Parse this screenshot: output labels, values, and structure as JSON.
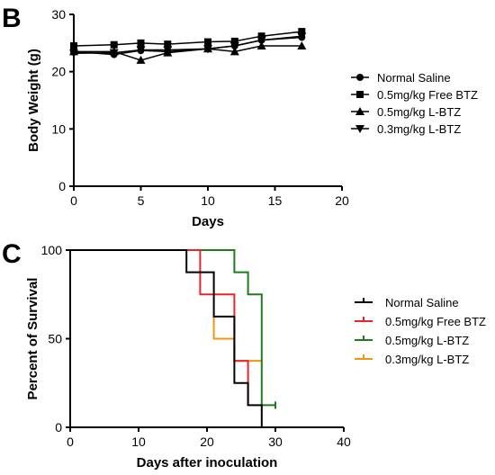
{
  "panels": {
    "b": {
      "letter": "B"
    },
    "c": {
      "letter": "C"
    }
  },
  "chart_data": [
    {
      "type": "line",
      "xlabel": "Days",
      "ylabel": "Body Weight (g)",
      "xlim": [
        0,
        20
      ],
      "ylim": [
        0,
        30
      ],
      "x_ticks": [
        "0",
        "5",
        "10",
        "15",
        "20"
      ],
      "y_ticks": [
        "0",
        "10",
        "20",
        "30"
      ],
      "grid": false,
      "legend_position": "right",
      "x": [
        0,
        3,
        5,
        7,
        10,
        12,
        14,
        17
      ],
      "series": [
        {
          "name": "Normal Saline",
          "marker": "circle",
          "color": "#000000",
          "values": [
            23.5,
            23.0,
            23.7,
            23.5,
            24.0,
            24.5,
            25.5,
            26.0
          ]
        },
        {
          "name": "0.5mg/kg Free BTZ",
          "marker": "square",
          "color": "#000000",
          "values": [
            24.5,
            24.7,
            25.0,
            24.8,
            25.2,
            25.3,
            26.2,
            27.0
          ]
        },
        {
          "name": "0.5mg/kg L-BTZ",
          "marker": "triangle-up",
          "color": "#000000",
          "values": [
            23.5,
            23.5,
            22.0,
            23.3,
            24.0,
            23.5,
            24.5,
            24.5
          ]
        },
        {
          "name": "0.3mg/kg L-BTZ",
          "marker": "triangle-down",
          "color": "#000000",
          "values": [
            23.2,
            23.3,
            23.8,
            23.8,
            24.0,
            24.5,
            25.5,
            26.2
          ]
        }
      ]
    },
    {
      "type": "line",
      "subtype": "kaplan-meier",
      "xlabel": "Days after inoculation",
      "ylabel": "Percent of Survival",
      "xlim": [
        0,
        40
      ],
      "ylim": [
        0,
        100
      ],
      "x_ticks": [
        "0",
        "10",
        "20",
        "30",
        "40"
      ],
      "y_ticks": [
        "0",
        "50",
        "100"
      ],
      "grid": false,
      "legend_position": "right",
      "series": [
        {
          "name": "Normal Saline",
          "color": "#000000",
          "x": [
            0,
            17,
            17,
            21,
            21,
            24,
            24,
            26,
            26,
            28,
            28
          ],
          "y": [
            100,
            100,
            87.5,
            87.5,
            62.5,
            62.5,
            25,
            25,
            12.5,
            12.5,
            0
          ]
        },
        {
          "name": "0.5mg/kg Free BTZ",
          "color": "#e8262a",
          "x": [
            0,
            19,
            19,
            24,
            24,
            26,
            26
          ],
          "y": [
            100,
            100,
            75,
            75,
            37.5,
            37.5,
            12.5
          ]
        },
        {
          "name": "0.5mg/kg L-BTZ",
          "color": "#1e7b1e",
          "x": [
            0,
            24,
            24,
            26,
            26,
            28,
            28,
            30
          ],
          "y": [
            100,
            100,
            87.5,
            87.5,
            75,
            75,
            12.5,
            12.5
          ],
          "censored": [
            {
              "x": 30,
              "y": 12.5
            }
          ]
        },
        {
          "name": "0.3mg/kg L-BTZ",
          "color": "#f0960f",
          "x": [
            21,
            21,
            24,
            24,
            28
          ],
          "y": [
            62.5,
            50,
            50,
            37.5,
            37.5
          ]
        }
      ]
    }
  ]
}
